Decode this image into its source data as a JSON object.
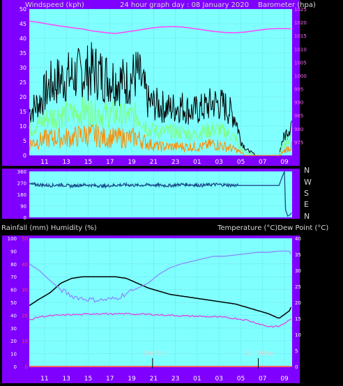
{
  "header": {
    "left": "Windspeed (kph)",
    "center": "24 hour graph day : 08 January 2020",
    "right": "Barometer (hpa)"
  },
  "mid_header": {
    "left": "Rainfall (mm)  Humidity (%)",
    "right": "Temperature (°C)Dew Point (°C)"
  },
  "compass": [
    "N",
    "W",
    "S",
    "E",
    "N"
  ],
  "annotations": {
    "sunset": "SunSet",
    "sunrise": "SunRise"
  },
  "colors": {
    "frame": "#8000ff",
    "plot_bg": "#80ffff",
    "gust": "#000000",
    "avg": "#7dff7d",
    "lull": "#ff8c00",
    "pressure": "#ff44ff",
    "direction": "#1a4c8c",
    "temperature": "#000000",
    "humidity": "#8a8aff",
    "dewpoint": "#e040e0",
    "rain": "#ff6060"
  },
  "chart_data": [
    {
      "type": "line",
      "name": "wind",
      "x_tick_labels": [
        "11",
        "13",
        "15",
        "17",
        "19",
        "21",
        "23",
        "01",
        "03",
        "05",
        "07",
        "09"
      ],
      "x_tick_hours": [
        10.5,
        12.5,
        14.5,
        16.5,
        18.5,
        20.5,
        22.5,
        24.5,
        26.5,
        28.5,
        30.5,
        32.5
      ],
      "x_range": [
        9.1,
        33.2
      ],
      "y_left_range": [
        0,
        50
      ],
      "y_left_ticks": [
        0,
        5,
        10,
        15,
        20,
        25,
        30,
        35,
        40,
        45,
        50
      ],
      "y_right_range": [
        970,
        1025
      ],
      "y_right_ticks": [
        975,
        980,
        985,
        990,
        995,
        1000,
        1005,
        1010,
        1015,
        1020,
        1025
      ],
      "grid": true,
      "series": [
        {
          "role": "gust",
          "hours": [
            9.1,
            10,
            11,
            12,
            13,
            14,
            15,
            16,
            17,
            18,
            19,
            19.5,
            20,
            21,
            22,
            23,
            24,
            25,
            26,
            27,
            28,
            28.5,
            29,
            30,
            31,
            32,
            32.3,
            33,
            33.2
          ],
          "values": [
            15,
            18,
            24,
            26,
            27,
            28,
            29,
            27,
            26,
            25,
            28,
            24,
            18,
            17,
            16,
            17,
            15,
            16,
            18,
            17,
            13,
            5,
            2,
            0,
            0,
            0,
            5,
            10,
            12
          ]
        },
        {
          "role": "average",
          "hours": [
            9.1,
            10,
            11,
            12,
            13,
            14,
            15,
            16,
            17,
            18,
            19,
            19.5,
            20,
            21,
            22,
            23,
            24,
            25,
            26,
            27,
            28,
            28.5,
            29,
            30,
            31,
            32,
            32.3,
            33,
            33.2
          ],
          "values": [
            9,
            11,
            13,
            14,
            14,
            15,
            15,
            14,
            14,
            13,
            14,
            12,
            9,
            8,
            8,
            8,
            7,
            8,
            9,
            8,
            6,
            2,
            1,
            0,
            0,
            0,
            3,
            6,
            7
          ]
        },
        {
          "role": "lull",
          "hours": [
            9.1,
            10,
            11,
            12,
            13,
            14,
            15,
            16,
            17,
            18,
            19,
            19.5,
            20,
            21,
            22,
            23,
            24,
            25,
            26,
            27,
            28,
            28.5,
            29,
            30,
            31,
            32,
            32.3,
            33,
            33.2
          ],
          "values": [
            4,
            5,
            6,
            6,
            6,
            7,
            7,
            6,
            6,
            6,
            6,
            5,
            4,
            3,
            3,
            3,
            3,
            3,
            4,
            3,
            2,
            1,
            0,
            0,
            0,
            0,
            1,
            3,
            3
          ]
        },
        {
          "role": "barometer",
          "axis": "right",
          "hours": [
            9.1,
            10,
            11,
            12,
            13,
            14,
            15,
            16,
            17,
            18,
            19,
            20,
            21,
            22,
            23,
            24,
            25,
            26,
            27,
            28,
            29,
            30,
            31,
            32,
            33,
            33.2
          ],
          "values": [
            1020.5,
            1020,
            1019.2,
            1018.6,
            1018,
            1017.5,
            1016.7,
            1016.2,
            1015.8,
            1016.4,
            1017,
            1017.7,
            1018.2,
            1018.4,
            1018.3,
            1017.8,
            1017.2,
            1016.6,
            1016.2,
            1016.1,
            1016.4,
            1017,
            1017.5,
            1017.7,
            1017.6,
            1017.5
          ]
        }
      ]
    },
    {
      "type": "line",
      "name": "wind_direction",
      "x_range": [
        9.1,
        33.2
      ],
      "y_range": [
        0,
        360
      ],
      "y_ticks": [
        0,
        90,
        180,
        270,
        360
      ],
      "series": [
        {
          "role": "direction",
          "hours": [
            9.1,
            10,
            11,
            12,
            13,
            14,
            15,
            16,
            17,
            18,
            19,
            20,
            21,
            22,
            23,
            24,
            25,
            26,
            27,
            28,
            28.3,
            30,
            31,
            32,
            32.3,
            32.5,
            32.6,
            32.8,
            33,
            33.2
          ],
          "values": [
            260,
            255,
            250,
            255,
            245,
            255,
            250,
            245,
            252,
            255,
            250,
            255,
            252,
            248,
            258,
            255,
            250,
            258,
            255,
            250,
            250,
            250,
            250,
            250,
            320,
            360,
            60,
            10,
            20,
            40
          ]
        }
      ]
    },
    {
      "type": "line",
      "name": "temperature_humidity",
      "x_tick_labels": [
        "11",
        "13",
        "15",
        "17",
        "19",
        "21",
        "23",
        "01",
        "03",
        "05",
        "07",
        "09"
      ],
      "x_range": [
        9.1,
        33.2
      ],
      "y_left_range": [
        0,
        100
      ],
      "y_left_ticks": [
        0,
        10,
        20,
        30,
        40,
        50,
        60,
        70,
        80,
        90,
        100
      ],
      "y_rain_range": [
        0,
        50
      ],
      "y_rain_ticks": [
        0,
        10,
        20,
        30,
        40,
        50
      ],
      "y_right_range": [
        0,
        40
      ],
      "y_right_ticks": [
        0,
        5,
        10,
        15,
        20,
        25,
        30,
        35,
        40
      ],
      "sunset_hour": 20.4,
      "sunrise_hour": 30.1,
      "grid": true,
      "series": [
        {
          "role": "temperature",
          "axis": "right",
          "hours": [
            9.1,
            10,
            11,
            12,
            13,
            14,
            15,
            16,
            17,
            18,
            19,
            20,
            21,
            22,
            23,
            24,
            25,
            26,
            27,
            28,
            29,
            30,
            31,
            32,
            33,
            33.2
          ],
          "values": [
            19,
            21,
            23,
            26,
            27.5,
            28,
            28,
            28,
            28,
            27.5,
            26,
            24.5,
            23.5,
            22.5,
            22,
            21.5,
            21,
            20.5,
            20,
            19.5,
            18.5,
            17.5,
            16.5,
            15,
            17.5,
            19.5
          ]
        },
        {
          "role": "humidity",
          "axis": "left",
          "hours": [
            9.1,
            10,
            11,
            12,
            13,
            14,
            15,
            16,
            17,
            18,
            19,
            20,
            21,
            22,
            23,
            24,
            25,
            26,
            27,
            28,
            29,
            30,
            31,
            32,
            33,
            33.2
          ],
          "values": [
            80,
            75,
            67,
            60,
            55,
            53,
            52,
            52,
            53,
            57,
            61,
            65,
            72,
            77,
            80,
            82,
            84,
            86,
            86,
            87,
            88,
            89,
            89,
            90,
            90,
            85
          ]
        },
        {
          "role": "dewpoint",
          "axis": "right",
          "hours": [
            9.1,
            10,
            11,
            12,
            13,
            14,
            15,
            16,
            17,
            18,
            19,
            20,
            21,
            22,
            23,
            24,
            25,
            26,
            27,
            28,
            29,
            30,
            31,
            32,
            33,
            33.2
          ],
          "values": [
            14.5,
            15.5,
            15.8,
            16,
            16.2,
            16.2,
            16.5,
            16.5,
            16.3,
            16.5,
            16.3,
            16.3,
            16.1,
            16,
            15.8,
            15.7,
            15.6,
            15.5,
            15.3,
            15,
            14.5,
            13.5,
            12.5,
            12.5,
            14.5,
            15.5
          ]
        },
        {
          "role": "rainfall",
          "axis": "rain",
          "hours": [
            9.1,
            33.2
          ],
          "values": [
            0,
            0
          ]
        }
      ]
    }
  ]
}
